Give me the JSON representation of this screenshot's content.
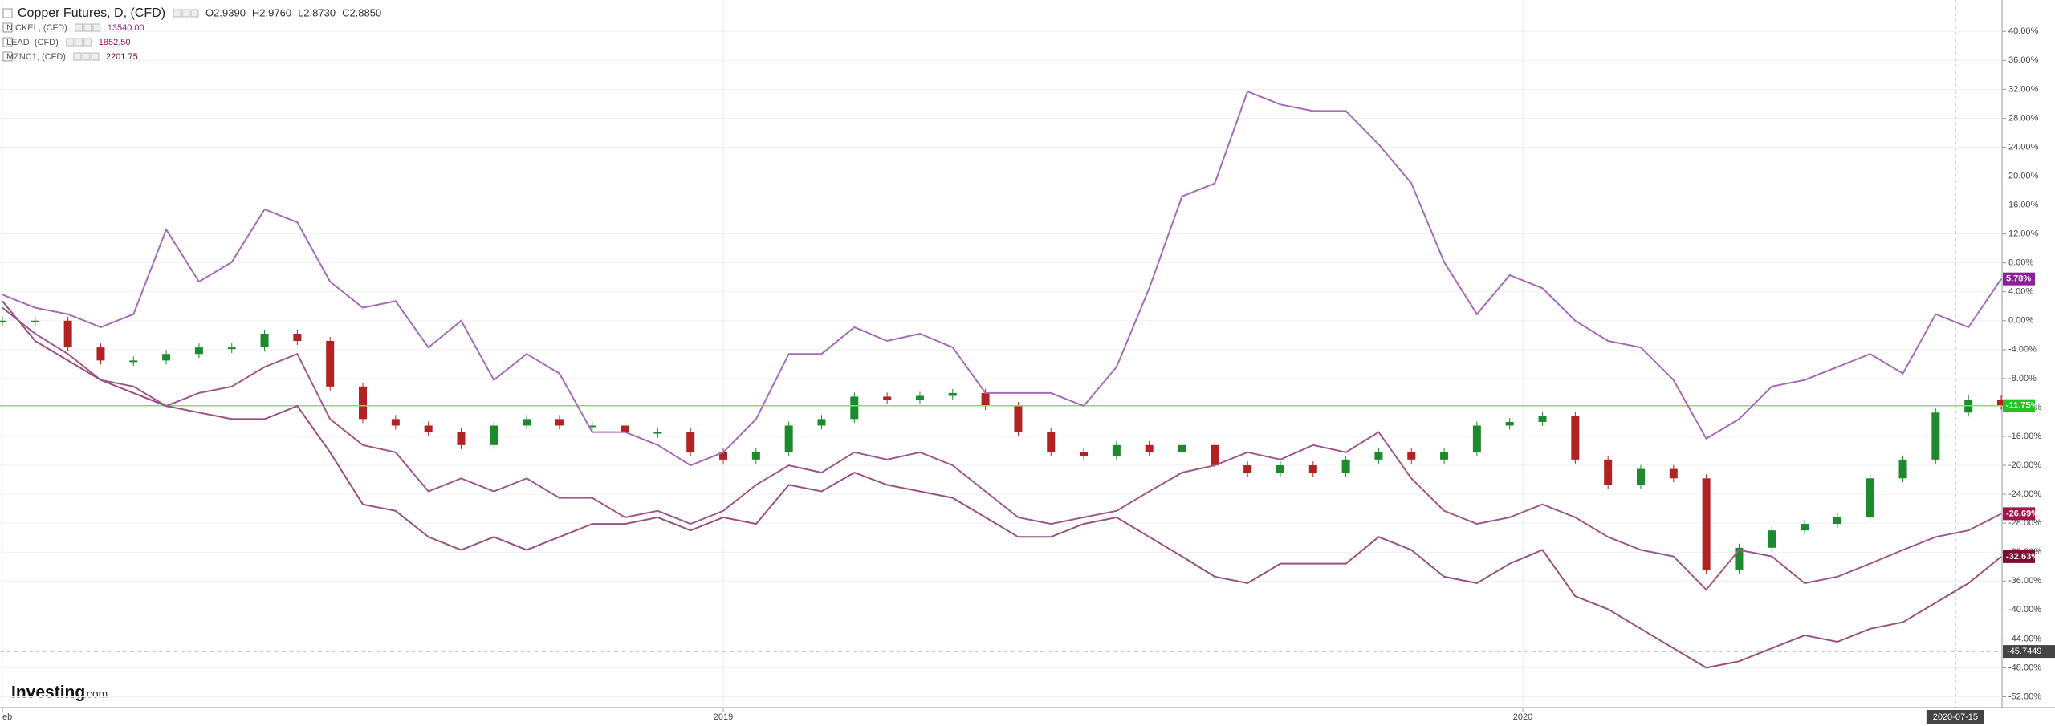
{
  "chart_data": {
    "type": "line",
    "xlim": [
      0,
      61
    ],
    "xticks": [
      {
        "value": 0,
        "label": "eb"
      },
      {
        "value": 22,
        "label": "2019"
      },
      {
        "value": 46.4,
        "label": "2020"
      }
    ],
    "cursor_x": {
      "value": 59.6,
      "label": "2020-07-15"
    },
    "ylim": [
      -53.5,
      43.8
    ],
    "yticks": [
      {
        "value": 40,
        "label": "40.00%"
      },
      {
        "value": 36,
        "label": "36.00%"
      },
      {
        "value": 32,
        "label": "32.00%"
      },
      {
        "value": 28,
        "label": "28.00%"
      },
      {
        "value": 24,
        "label": "24.00%"
      },
      {
        "value": 20,
        "label": "20.00%"
      },
      {
        "value": 16,
        "label": "16.00%"
      },
      {
        "value": 12,
        "label": "12.00%"
      },
      {
        "value": 8,
        "label": "8.00%"
      },
      {
        "value": 4,
        "label": "4.00%"
      },
      {
        "value": 0,
        "label": "0.00%"
      },
      {
        "value": -4,
        "label": "-4.00%"
      },
      {
        "value": -8,
        "label": "-8.00%"
      },
      {
        "value": -12,
        "label": "-12.00%"
      },
      {
        "value": -16,
        "label": "-16.00%"
      },
      {
        "value": -20,
        "label": "-20.00%"
      },
      {
        "value": -24,
        "label": "-24.00%"
      },
      {
        "value": -28,
        "label": "-28.00%"
      },
      {
        "value": -32,
        "label": "-32.00%"
      },
      {
        "value": -36,
        "label": "-36.00%"
      },
      {
        "value": -40,
        "label": "-40.00%"
      },
      {
        "value": -44,
        "label": "-44.00%"
      },
      {
        "value": -48,
        "label": "-48.00%"
      },
      {
        "value": -52,
        "label": "-52.00%"
      }
    ],
    "crosshair_y": {
      "value": -45.7449,
      "label": "-45.7449"
    },
    "grid": true,
    "series": [
      {
        "name": "Copper Futures, D, (CFD)",
        "style": "candles",
        "color": "#1e8a2e",
        "down_color": "#b22222",
        "label_color": "#22c322",
        "last_label": "-11.75%",
        "ohlc": [
          "O2.9390",
          "H2.9760",
          "L2.8730",
          "C2.8850"
        ],
        "values": [
          0.0,
          0.0,
          -3.7,
          -5.5,
          -5.5,
          -4.6,
          -3.7,
          -3.7,
          -1.8,
          -2.8,
          -9.1,
          -13.6,
          -14.5,
          -15.4,
          -17.2,
          -14.5,
          -13.6,
          -14.5,
          -14.5,
          -15.4,
          -15.4,
          -18.2,
          -19.2,
          -18.2,
          -14.5,
          -13.6,
          -10.5,
          -10.9,
          -10.4,
          -10.0,
          -11.8,
          -15.4,
          -18.2,
          -18.7,
          -17.2,
          -18.2,
          -17.2,
          -20.0,
          -21.0,
          -20.0,
          -21.0,
          -19.2,
          -18.2,
          -19.2,
          -18.2,
          -14.5,
          -14.0,
          -13.2,
          -19.2,
          -22.7,
          -20.5,
          -21.8,
          -34.5,
          -31.4,
          -29.0,
          -28.1,
          -27.2,
          -21.8,
          -19.2,
          -12.7,
          -10.9,
          -11.75
        ]
      },
      {
        "name": "NICKEL, (CFD)",
        "style": "line",
        "color": "#a56bb8",
        "label_color": "#8e1f9b",
        "price": "13540.00",
        "last_label": "5.78%",
        "values": [
          3.6,
          1.8,
          0.9,
          -0.9,
          0.9,
          12.6,
          5.4,
          8.1,
          15.4,
          13.6,
          5.4,
          1.8,
          2.7,
          -3.7,
          0.0,
          -8.2,
          -4.6,
          -7.3,
          -15.4,
          -15.4,
          -17.2,
          -20.0,
          -18.2,
          -13.6,
          -4.6,
          -4.6,
          -0.9,
          -2.8,
          -1.8,
          -3.7,
          -10.0,
          -10.0,
          -10.0,
          -11.8,
          -6.4,
          4.5,
          17.2,
          19.0,
          31.7,
          29.9,
          29.0,
          29.0,
          24.4,
          19.0,
          8.1,
          0.9,
          6.3,
          4.5,
          0.0,
          -2.8,
          -3.7,
          -8.2,
          -16.3,
          -13.6,
          -9.1,
          -8.2,
          -6.4,
          -4.6,
          -7.3,
          0.9,
          -0.9,
          5.78
        ]
      },
      {
        "name": "LEAD, (CFD)",
        "style": "line",
        "color": "#a0588c",
        "label_color": "#a3154a",
        "price": "1852.50",
        "last_label": "-26.69%",
        "values": [
          1.8,
          -1.8,
          -4.6,
          -8.2,
          -9.1,
          -11.8,
          -10.0,
          -9.1,
          -6.4,
          -4.6,
          -13.6,
          -17.2,
          -18.2,
          -23.6,
          -21.8,
          -23.6,
          -21.8,
          -24.5,
          -24.5,
          -27.2,
          -26.3,
          -28.1,
          -26.3,
          -22.7,
          -20.0,
          -21.0,
          -18.2,
          -19.2,
          -18.2,
          -20.0,
          -23.6,
          -27.2,
          -28.1,
          -27.2,
          -26.3,
          -23.6,
          -21.0,
          -20.0,
          -18.2,
          -19.2,
          -17.2,
          -18.2,
          -15.4,
          -21.8,
          -26.3,
          -28.1,
          -27.2,
          -25.4,
          -27.2,
          -29.9,
          -31.7,
          -32.6,
          -37.2,
          -31.7,
          -32.6,
          -36.3,
          -35.4,
          -33.6,
          -31.7,
          -29.9,
          -29.0,
          -26.69
        ]
      },
      {
        "name": "MZNC1, (CFD)",
        "style": "line",
        "color": "#9b4f80",
        "label_color": "#7a0f33",
        "price": "2201.75",
        "last_label": "-32.63%",
        "values": [
          2.7,
          -2.8,
          -5.5,
          -8.2,
          -10.0,
          -11.8,
          -12.7,
          -13.6,
          -13.6,
          -11.8,
          -18.2,
          -25.4,
          -26.3,
          -29.9,
          -31.7,
          -29.9,
          -31.7,
          -29.9,
          -28.1,
          -28.1,
          -27.2,
          -29.0,
          -27.2,
          -28.1,
          -22.7,
          -23.6,
          -21.0,
          -22.7,
          -23.6,
          -24.5,
          -27.2,
          -29.9,
          -29.9,
          -28.1,
          -27.2,
          -29.9,
          -32.6,
          -35.4,
          -36.3,
          -33.6,
          -33.6,
          -33.6,
          -29.9,
          -31.7,
          -35.4,
          -36.3,
          -33.6,
          -31.7,
          -38.1,
          -39.9,
          -42.6,
          -45.3,
          -48.0,
          -47.1,
          -45.3,
          -43.5,
          -44.4,
          -42.6,
          -41.7,
          -39.0,
          -36.3,
          -32.63
        ]
      }
    ]
  },
  "logo": {
    "brand": "Investing",
    "suffix": ".com"
  }
}
